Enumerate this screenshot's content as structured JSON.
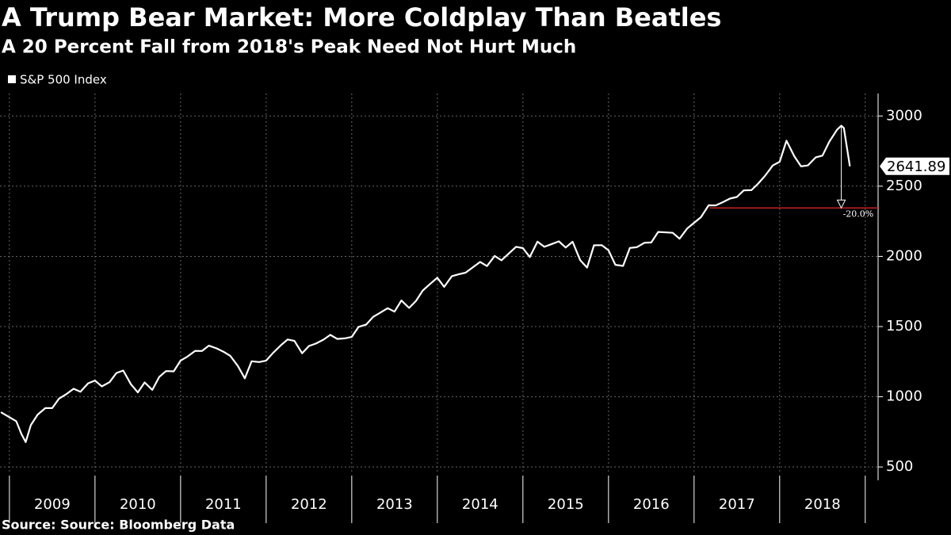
{
  "chart_data": {
    "type": "line",
    "title": "A Trump Bear Market: More Coldplay Than Beatles",
    "subtitle": "A 20 Percent Fall from 2018's Peak Need Not Hurt Much",
    "source": "Source: Source: Bloomberg Data",
    "series": [
      {
        "name": "S&P 500 Index",
        "color": "#ffffff",
        "x": [
          2008.9,
          2009.08,
          2009.14,
          2009.19,
          2009.25,
          2009.33,
          2009.42,
          2009.5,
          2009.58,
          2009.67,
          2009.75,
          2009.83,
          2009.92,
          2010.0,
          2010.08,
          2010.17,
          2010.25,
          2010.33,
          2010.42,
          2010.5,
          2010.58,
          2010.67,
          2010.75,
          2010.83,
          2010.92,
          2011.0,
          2011.08,
          2011.17,
          2011.25,
          2011.33,
          2011.42,
          2011.5,
          2011.58,
          2011.67,
          2011.75,
          2011.83,
          2011.92,
          2012.0,
          2012.08,
          2012.17,
          2012.25,
          2012.33,
          2012.42,
          2012.5,
          2012.58,
          2012.67,
          2012.75,
          2012.83,
          2012.92,
          2013.0,
          2013.08,
          2013.17,
          2013.25,
          2013.33,
          2013.42,
          2013.5,
          2013.58,
          2013.67,
          2013.75,
          2013.83,
          2013.92,
          2014.0,
          2014.08,
          2014.17,
          2014.25,
          2014.33,
          2014.42,
          2014.5,
          2014.58,
          2014.67,
          2014.75,
          2014.83,
          2014.92,
          2015.0,
          2015.08,
          2015.17,
          2015.25,
          2015.33,
          2015.42,
          2015.5,
          2015.58,
          2015.67,
          2015.75,
          2015.83,
          2015.92,
          2016.0,
          2016.08,
          2016.17,
          2016.25,
          2016.33,
          2016.42,
          2016.5,
          2016.58,
          2016.67,
          2016.75,
          2016.83,
          2016.92,
          2017.0,
          2017.08,
          2017.17,
          2017.25,
          2017.33,
          2017.42,
          2017.5,
          2017.58,
          2017.67,
          2017.75,
          2017.83,
          2017.92,
          2018.0,
          2018.08,
          2018.17,
          2018.25,
          2018.33,
          2018.42,
          2018.5,
          2018.58,
          2018.67,
          2018.72,
          2018.75,
          2018.82
        ],
        "values": [
          890,
          826,
          735,
          677,
          798,
          873,
          919,
          919,
          987,
          1021,
          1057,
          1036,
          1096,
          1115,
          1074,
          1104,
          1169,
          1187,
          1089,
          1031,
          1102,
          1049,
          1141,
          1183,
          1181,
          1258,
          1286,
          1327,
          1326,
          1364,
          1345,
          1321,
          1292,
          1219,
          1131,
          1253,
          1247,
          1258,
          1312,
          1366,
          1408,
          1398,
          1310,
          1362,
          1379,
          1407,
          1441,
          1412,
          1416,
          1426,
          1498,
          1515,
          1569,
          1598,
          1631,
          1606,
          1686,
          1633,
          1682,
          1757,
          1806,
          1848,
          1783,
          1859,
          1872,
          1884,
          1924,
          1960,
          1931,
          2003,
          1972,
          2018,
          2068,
          2059,
          1995,
          2105,
          2068,
          2086,
          2107,
          2063,
          2104,
          1972,
          1920,
          2079,
          2080,
          2044,
          1940,
          1932,
          2060,
          2065,
          2097,
          2099,
          2174,
          2171,
          2168,
          2126,
          2199,
          2239,
          2279,
          2364,
          2363,
          2384,
          2412,
          2423,
          2470,
          2472,
          2519,
          2575,
          2648,
          2674,
          2824,
          2714,
          2641,
          2648,
          2705,
          2718,
          2816,
          2902,
          2930.75,
          2914,
          2641.89
        ]
      }
    ],
    "xlim": [
      2008.89,
      2019.15
    ],
    "xticks": [
      {
        "value": 2009.5,
        "label": "2009"
      },
      {
        "value": 2010.5,
        "label": "2010"
      },
      {
        "value": 2011.5,
        "label": "2011"
      },
      {
        "value": 2012.5,
        "label": "2012"
      },
      {
        "value": 2013.5,
        "label": "2013"
      },
      {
        "value": 2014.5,
        "label": "2014"
      },
      {
        "value": 2015.5,
        "label": "2015"
      },
      {
        "value": 2016.5,
        "label": "2016"
      },
      {
        "value": 2017.5,
        "label": "2017"
      },
      {
        "value": 2018.5,
        "label": "2018"
      }
    ],
    "ylim": [
      450,
      3160
    ],
    "yticks": [
      500,
      1000,
      1500,
      2000,
      2500,
      3000
    ],
    "grid": true,
    "drawdown": {
      "value": 2344.6,
      "label": "-20.0%",
      "start_x": 2017.18,
      "color": "#cc2222"
    }
  }
}
